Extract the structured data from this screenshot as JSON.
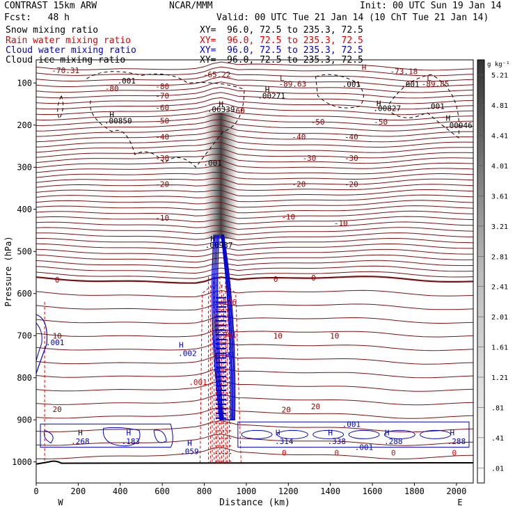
{
  "header": {
    "model": "CONTRAST 15km ARW",
    "center": "NCAR/MMM",
    "init": "Init: 00 UTC Sun 19 Jan 14",
    "fcst": "Fcst:   48 h",
    "valid": "Valid: 00 UTC Tue 21 Jan 14 (10 ChT Tue 21 Jan 14)",
    "fields": [
      {
        "name": "Snow mixing ratio",
        "xy": "XY=  96.0, 72.5 to 235.3, 72.5",
        "color": "#000000"
      },
      {
        "name": "Rain water mixing ratio",
        "xy": "XY=  96.0, 72.5 to 235.3, 72.5",
        "color": "#e00000"
      },
      {
        "name": "Cloud water mixing ratio",
        "xy": "XY=  96.0, 72.5 to 235.3, 72.5",
        "color": "#0000d0"
      },
      {
        "name": "Cloud ice mixing ratio",
        "xy": "XY=  96.0, 72.5 to 235.3, 72.5",
        "color": "#000000"
      }
    ]
  },
  "chart_data": {
    "type": "cross-section",
    "xlabel": "Distance (km)",
    "ylabel": "Pressure (hPa)",
    "xlim": [
      0,
      2080
    ],
    "ylim": [
      1050,
      45
    ],
    "x_ticks": [
      0,
      200,
      400,
      600,
      800,
      1000,
      1200,
      1400,
      1600,
      1800,
      2000
    ],
    "y_ticks": [
      100,
      200,
      300,
      400,
      500,
      600,
      700,
      800,
      900,
      1000
    ],
    "x_end_labels": {
      "left": "W",
      "right": "E"
    },
    "colorbar": {
      "unit": "g kg⁻¹",
      "levels": [
        ".01",
        ".41",
        ".81",
        "1.21",
        "1.61",
        "2.01",
        "2.41",
        "2.81",
        "3.21",
        "3.61",
        "4.01",
        "4.41",
        "4.81",
        "5.21"
      ]
    },
    "temperature_isotherms": [
      {
        "label": "-80",
        "p": 108
      },
      {
        "label": "-70",
        "p": 130
      },
      {
        "label": "-60",
        "p": 158
      },
      {
        "label": "-50",
        "p": 190
      },
      {
        "label": "-40",
        "p": 228
      },
      {
        "label": "-30",
        "p": 278
      },
      {
        "label": "-20",
        "p": 340
      },
      {
        "label": "-10",
        "p": 420
      },
      {
        "label": "0",
        "p": 567
      },
      {
        "label": "10",
        "p": 700
      },
      {
        "label": "20",
        "p": 875
      }
    ],
    "contour_labels": [
      {
        "text": "-70.31",
        "x": 140,
        "p": 70,
        "color": "#8b0000"
      },
      {
        "text": "-65.22",
        "x": 860,
        "p": 80,
        "color": "#8b0000"
      },
      {
        "text": "-73.18",
        "x": 1750,
        "p": 72,
        "color": "#8b0000"
      },
      {
        "text": "-89.63",
        "x": 1220,
        "p": 102,
        "color": "#8b0000"
      },
      {
        "text": "-89.85",
        "x": 1900,
        "p": 102,
        "color": "#8b0000"
      },
      {
        "text": "-80",
        "x": 360,
        "p": 113,
        "color": "#8b0000"
      },
      {
        "text": "-60",
        "x": 960,
        "p": 166,
        "color": "#8b0000"
      },
      {
        "text": "-50",
        "x": 1340,
        "p": 192,
        "color": "#8b0000"
      },
      {
        "text": "-50",
        "x": 1640,
        "p": 192,
        "color": "#8b0000"
      },
      {
        "text": "-40",
        "x": 1250,
        "p": 228,
        "color": "#8b0000"
      },
      {
        "text": "-40",
        "x": 1500,
        "p": 228,
        "color": "#8b0000"
      },
      {
        "text": "-30",
        "x": 1300,
        "p": 278,
        "color": "#8b0000"
      },
      {
        "text": "-30",
        "x": 1500,
        "p": 278,
        "color": "#8b0000"
      },
      {
        "text": "-20",
        "x": 1250,
        "p": 340,
        "color": "#8b0000"
      },
      {
        "text": "-20",
        "x": 1500,
        "p": 340,
        "color": "#8b0000"
      },
      {
        "text": "-10",
        "x": 1200,
        "p": 418,
        "color": "#8b0000"
      },
      {
        "text": "-10",
        "x": 1450,
        "p": 433,
        "color": "#8b0000"
      },
      {
        "text": "0",
        "x": 1140,
        "p": 566,
        "color": "#8b0000"
      },
      {
        "text": "0",
        "x": 1320,
        "p": 562,
        "color": "#8b0000"
      },
      {
        "text": "10",
        "x": 1150,
        "p": 700,
        "color": "#8b0000"
      },
      {
        "text": "10",
        "x": 1420,
        "p": 700,
        "color": "#8b0000"
      },
      {
        "text": "20",
        "x": 1190,
        "p": 876,
        "color": "#8b0000"
      },
      {
        "text": "20",
        "x": 1330,
        "p": 868,
        "color": "#8b0000"
      },
      {
        "text": "L",
        "x": 1170,
        "p": 88,
        "color": "#8b0000"
      },
      {
        "text": "L",
        "x": 1870,
        "p": 88,
        "color": "#8b0000"
      },
      {
        "text": "H",
        "x": 1560,
        "p": 62,
        "color": "#8b0000"
      },
      {
        "text": ".001",
        "x": 430,
        "p": 95,
        "color": "#000000"
      },
      {
        "text": ".001",
        "x": 1500,
        "p": 103,
        "color": "#000000"
      },
      {
        "text": ".001",
        "x": 1780,
        "p": 103,
        "color": "#000000"
      },
      {
        "text": ".001",
        "x": 1900,
        "p": 155,
        "color": "#000000"
      },
      {
        "text": "H",
        "x": 1100,
        "p": 115,
        "color": "#000000"
      },
      {
        "text": ".00271",
        "x": 1120,
        "p": 130,
        "color": "#000000"
      },
      {
        "text": "H",
        "x": 1630,
        "p": 148,
        "color": "#000000"
      },
      {
        "text": ".00827",
        "x": 1670,
        "p": 160,
        "color": "#000000"
      },
      {
        "text": "H",
        "x": 360,
        "p": 175,
        "color": "#000000"
      },
      {
        "text": ".00850",
        "x": 390,
        "p": 190,
        "color": "#000000"
      },
      {
        "text": "H",
        "x": 1960,
        "p": 183,
        "color": "#000000"
      },
      {
        "text": ".00946",
        "x": 2010,
        "p": 200,
        "color": "#000000"
      },
      {
        "text": "H",
        "x": 880,
        "p": 150,
        "color": "#000000"
      },
      {
        "text": ".06339",
        "x": 880,
        "p": 162,
        "color": "#000000"
      },
      {
        "text": ".001",
        "x": 840,
        "p": 290,
        "color": "#000000"
      },
      {
        "text": "H",
        "x": 840,
        "p": 470,
        "color": "#000000"
      },
      {
        "text": ".00937",
        "x": 870,
        "p": 485,
        "color": "#000000"
      },
      {
        "text": ".001",
        "x": 90,
        "p": 716,
        "color": "#0000d0"
      },
      {
        "text": "H",
        "x": 690,
        "p": 722,
        "color": "#0000d0"
      },
      {
        "text": ".002",
        "x": 720,
        "p": 742,
        "color": "#0000d0"
      },
      {
        "text": ".001",
        "x": 770,
        "p": 810,
        "color": "#e00000"
      },
      {
        "text": "H",
        "x": 210,
        "p": 930,
        "color": "#0000d0"
      },
      {
        "text": ".268",
        "x": 210,
        "p": 951,
        "color": "#0000d0"
      },
      {
        "text": "H",
        "x": 440,
        "p": 930,
        "color": "#0000d0"
      },
      {
        "text": ".183",
        "x": 450,
        "p": 951,
        "color": "#0000d0"
      },
      {
        "text": "H",
        "x": 730,
        "p": 955,
        "color": "#0000d0"
      },
      {
        "text": ".059",
        "x": 730,
        "p": 975,
        "color": "#0000d0"
      },
      {
        "text": "H",
        "x": 1150,
        "p": 930,
        "color": "#0000d0"
      },
      {
        "text": ".314",
        "x": 1180,
        "p": 951,
        "color": "#0000d0"
      },
      {
        "text": "H",
        "x": 1400,
        "p": 930,
        "color": "#0000d0"
      },
      {
        "text": ".338",
        "x": 1430,
        "p": 951,
        "color": "#0000d0"
      },
      {
        "text": ".001",
        "x": 1500,
        "p": 910,
        "color": "#0000d0"
      },
      {
        "text": ".001",
        "x": 1560,
        "p": 965,
        "color": "#0000d0"
      },
      {
        "text": "H",
        "x": 1670,
        "p": 930,
        "color": "#0000d0"
      },
      {
        "text": ".288",
        "x": 1700,
        "p": 951,
        "color": "#0000d0"
      },
      {
        "text": "H",
        "x": 1980,
        "p": 930,
        "color": "#0000d0"
      },
      {
        "text": ".288",
        "x": 2000,
        "p": 951,
        "color": "#0000d0"
      },
      {
        "text": "0",
        "x": 1180,
        "p": 978,
        "color": "#e00000"
      },
      {
        "text": "0",
        "x": 1430,
        "p": 978,
        "color": "#e00000"
      },
      {
        "text": "0",
        "x": 1700,
        "p": 978,
        "color": "#e00000"
      },
      {
        "text": "0",
        "x": 1990,
        "p": 978,
        "color": "#e00000"
      },
      {
        "text": ".126",
        "x": 910,
        "p": 620,
        "color": "#e00000"
      },
      {
        "text": ".001",
        "x": 910,
        "p": 698,
        "color": "#e00000"
      },
      {
        "text": ".01",
        "x": 910,
        "p": 745,
        "color": "#0000d0"
      }
    ],
    "terrain_surface_hPa": 1003
  }
}
